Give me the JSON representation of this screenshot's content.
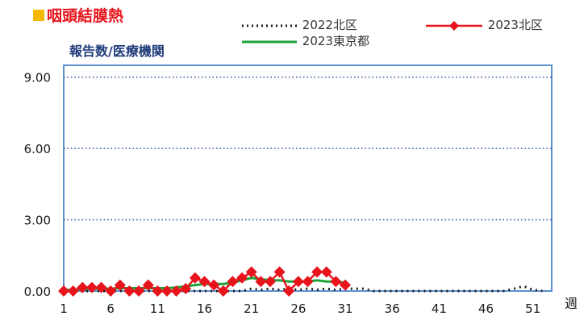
{
  "chart_data": {
    "type": "line",
    "title": "咽頭結膜熱",
    "ylabel": "報告数/医療機関",
    "xlabel": "週",
    "ylim": [
      0,
      9.5
    ],
    "xlim": [
      1,
      53
    ],
    "y_ticks": [
      "0.00",
      "3.00",
      "6.00",
      "9.00"
    ],
    "x_ticks": [
      "1",
      "6",
      "11",
      "16",
      "21",
      "26",
      "31",
      "36",
      "41",
      "46",
      "51"
    ],
    "grid": "horizontal dotted",
    "legend_position": "top",
    "series": [
      {
        "name": "2022北区",
        "color": "#1a1a1a",
        "style": "dotted",
        "x": [
          1,
          2,
          3,
          4,
          5,
          6,
          7,
          8,
          9,
          10,
          11,
          12,
          13,
          14,
          15,
          16,
          17,
          18,
          19,
          20,
          21,
          22,
          23,
          24,
          25,
          26,
          27,
          28,
          29,
          30,
          31,
          32,
          33,
          34,
          35,
          36,
          37,
          38,
          39,
          40,
          41,
          42,
          43,
          44,
          45,
          46,
          47,
          48,
          49,
          50,
          51,
          52
        ],
        "values": [
          0,
          0,
          0,
          0,
          0,
          0,
          0,
          0,
          0,
          0,
          0,
          0,
          0,
          0,
          0,
          0,
          0,
          0,
          0,
          0,
          0.1,
          0.05,
          0.1,
          0.05,
          0.1,
          0.05,
          0.1,
          0.05,
          0.1,
          0.05,
          0.1,
          0.1,
          0.1,
          0,
          0,
          0,
          0,
          0,
          0,
          0,
          0,
          0,
          0,
          0,
          0,
          0,
          0,
          0,
          0.1,
          0.2,
          0.05,
          0
        ]
      },
      {
        "name": "2023北区",
        "color": "#e8141c",
        "style": "solid-diamond",
        "x": [
          1,
          2,
          3,
          4,
          5,
          6,
          7,
          8,
          9,
          10,
          11,
          12,
          13,
          14,
          15,
          16,
          17,
          18,
          19,
          20,
          21,
          22,
          23,
          24,
          25,
          26,
          27,
          28,
          29,
          30,
          31
        ],
        "values": [
          0,
          0,
          0.15,
          0.15,
          0.15,
          0,
          0.25,
          0,
          0,
          0.25,
          0,
          0,
          0,
          0.1,
          0.55,
          0.4,
          0.25,
          0,
          0.4,
          0.55,
          0.8,
          0.4,
          0.4,
          0.8,
          0,
          0.4,
          0.4,
          0.8,
          0.8,
          0.4,
          0.25
        ]
      },
      {
        "name": "2023東京都",
        "color": "#1aa33a",
        "style": "solid",
        "x": [
          1,
          2,
          3,
          4,
          5,
          6,
          7,
          8,
          9,
          10,
          11,
          12,
          13,
          14,
          15,
          16,
          17,
          18,
          19,
          20,
          21,
          22,
          23,
          24,
          25,
          26,
          27,
          28,
          29,
          30,
          31
        ],
        "values": [
          0.05,
          0.05,
          0.08,
          0.1,
          0.1,
          0.1,
          0.12,
          0.12,
          0.12,
          0.12,
          0.12,
          0.12,
          0.15,
          0.2,
          0.25,
          0.3,
          0.3,
          0.3,
          0.35,
          0.45,
          0.55,
          0.5,
          0.45,
          0.45,
          0.4,
          0.4,
          0.4,
          0.45,
          0.4,
          0.4,
          0.35
        ]
      }
    ]
  }
}
